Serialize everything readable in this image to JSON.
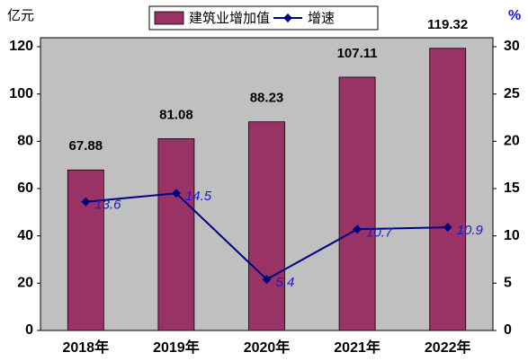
{
  "chart_data": {
    "type": "bar-line",
    "y_label": "亿元",
    "y2_label": "%",
    "categories": [
      "2018年",
      "2019年",
      "2020年",
      "2021年",
      "2022年"
    ],
    "series": [
      {
        "name": "建筑业增加值",
        "type": "bar",
        "color": "#993366",
        "values": [
          67.88,
          81.08,
          88.23,
          107.11,
          119.32
        ]
      },
      {
        "name": "增速",
        "type": "line",
        "axis": "y2",
        "color": "#000080",
        "label_color": "#1a1ad0",
        "values": [
          13.6,
          14.5,
          5.4,
          10.7,
          10.9
        ]
      }
    ],
    "ylim": [
      0,
      120
    ],
    "yticks": [
      0,
      20,
      40,
      60,
      80,
      100,
      120
    ],
    "y2lim": [
      0,
      30
    ],
    "y2ticks": [
      0,
      5,
      10,
      15,
      20,
      25,
      30
    ],
    "legend": "top"
  }
}
